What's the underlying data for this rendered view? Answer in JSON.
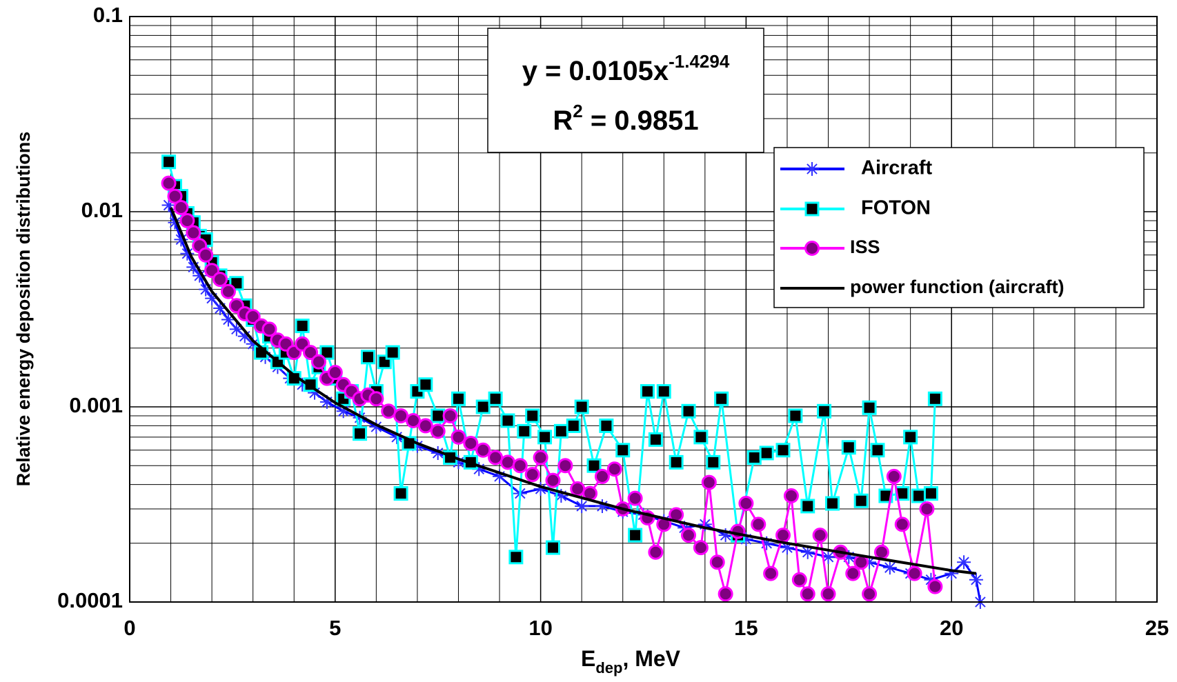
{
  "chart_data": {
    "type": "line",
    "x_label": {
      "main": "E",
      "sub": "dep",
      "rest": ", MeV"
    },
    "y_label": "Relative energy deposition distributions",
    "equation": {
      "lhs": "y = 0.0105x",
      "exponent": "-1.4294",
      "r": "R",
      "r_exp": "2",
      "r_rest": " = 0.9851"
    },
    "xlim": [
      0,
      25
    ],
    "xticks": [
      0,
      5,
      10,
      15,
      20,
      25
    ],
    "ylim": [
      0.0001,
      0.1
    ],
    "yticks": [
      0.0001,
      0.001,
      0.01,
      0.1
    ],
    "y_scale": "log",
    "grid": true,
    "legend_position": "upper right",
    "series": [
      {
        "name": "Aircraft",
        "color": "#0000ff",
        "label_color": "#0000ff",
        "marker": "asterisk",
        "marker_color": "#3030ff",
        "x": [
          0.95,
          1.1,
          1.25,
          1.4,
          1.55,
          1.7,
          1.85,
          2.0,
          2.2,
          2.4,
          2.6,
          2.8,
          3.0,
          3.3,
          3.6,
          3.9,
          4.2,
          4.5,
          4.8,
          5.2,
          5.6,
          6.0,
          6.5,
          7.0,
          7.5,
          8.0,
          8.5,
          9.0,
          9.5,
          10.0,
          10.5,
          11.0,
          11.5,
          12.0,
          12.5,
          13.0,
          13.5,
          14.0,
          14.5,
          15.0,
          15.5,
          16.0,
          16.5,
          17.0,
          17.5,
          18.0,
          18.5,
          19.0,
          19.5,
          20.0,
          20.3,
          20.6,
          20.7
        ],
        "values": [
          0.0108,
          0.0088,
          0.0072,
          0.0061,
          0.0052,
          0.0047,
          0.004,
          0.0036,
          0.0032,
          0.0028,
          0.0025,
          0.0023,
          0.0021,
          0.0018,
          0.0016,
          0.0014,
          0.0013,
          0.00118,
          0.00106,
          0.00095,
          0.00088,
          0.00079,
          0.0007,
          0.00063,
          0.00058,
          0.00052,
          0.00048,
          0.00044,
          0.00036,
          0.00038,
          0.00035,
          0.00031,
          0.00031,
          0.00029,
          0.00028,
          0.00026,
          0.00024,
          0.00025,
          0.00022,
          0.00021,
          0.0002,
          0.00019,
          0.00018,
          0.00017,
          0.00017,
          0.00016,
          0.00015,
          0.00014,
          0.00013,
          0.00014,
          0.00016,
          0.00013,
          0.0001
        ]
      },
      {
        "name": "FOTON",
        "color": "#00ffff",
        "label_color": "#ff0000",
        "marker": "square",
        "marker_color": "#000000",
        "x": [
          0.95,
          1.1,
          1.25,
          1.4,
          1.55,
          1.7,
          1.85,
          2.0,
          2.2,
          2.4,
          2.6,
          2.8,
          3.0,
          3.2,
          3.4,
          3.6,
          3.8,
          4.0,
          4.2,
          4.4,
          4.6,
          4.8,
          5.0,
          5.2,
          5.4,
          5.6,
          5.8,
          6.0,
          6.2,
          6.4,
          6.6,
          6.8,
          7.0,
          7.2,
          7.5,
          7.8,
          8.0,
          8.3,
          8.6,
          8.9,
          9.2,
          9.4,
          9.6,
          9.8,
          10.1,
          10.3,
          10.5,
          10.8,
          11.0,
          11.3,
          11.6,
          12.0,
          12.3,
          12.6,
          12.8,
          13.0,
          13.3,
          13.6,
          13.9,
          14.2,
          14.4,
          14.8,
          15.2,
          15.5,
          15.9,
          16.2,
          16.5,
          16.9,
          17.1,
          17.5,
          17.8,
          18.0,
          18.2,
          18.4,
          18.8,
          19.0,
          19.2,
          19.5,
          19.6
        ],
        "values": [
          0.018,
          0.0135,
          0.012,
          0.0098,
          0.0088,
          0.0075,
          0.0072,
          0.0055,
          0.0047,
          0.0042,
          0.0043,
          0.0033,
          0.0028,
          0.0019,
          0.0023,
          0.0017,
          0.0019,
          0.0014,
          0.0026,
          0.0013,
          0.0016,
          0.0019,
          0.0014,
          0.0011,
          0.0012,
          0.00073,
          0.0018,
          0.0012,
          0.0017,
          0.0019,
          0.00036,
          0.00065,
          0.0012,
          0.0013,
          0.0009,
          0.00055,
          0.0011,
          0.00052,
          0.001,
          0.0011,
          0.00085,
          0.00017,
          0.00075,
          0.0009,
          0.0007,
          0.00019,
          0.00075,
          0.0008,
          0.001,
          0.0005,
          0.0008,
          0.0006,
          0.00022,
          0.0012,
          0.00068,
          0.0012,
          0.00052,
          0.00095,
          0.0007,
          0.00052,
          0.0011,
          0.00022,
          0.00055,
          0.00058,
          0.0006,
          0.0009,
          0.00031,
          0.00095,
          0.00032,
          0.00062,
          0.00033,
          0.00099,
          0.0006,
          0.00035,
          0.00036,
          0.0007,
          0.00035,
          0.00036,
          0.0011
        ]
      },
      {
        "name": "ISS",
        "color": "#ff00ff",
        "label_color": "#000000",
        "marker": "circle",
        "marker_color": "#800080",
        "x": [
          0.95,
          1.1,
          1.25,
          1.4,
          1.55,
          1.7,
          1.85,
          2.0,
          2.2,
          2.4,
          2.6,
          2.8,
          3.0,
          3.2,
          3.4,
          3.6,
          3.8,
          4.0,
          4.2,
          4.4,
          4.6,
          4.8,
          5.0,
          5.2,
          5.4,
          5.6,
          5.8,
          6.0,
          6.3,
          6.6,
          6.9,
          7.2,
          7.5,
          7.8,
          8.0,
          8.3,
          8.6,
          8.9,
          9.2,
          9.5,
          9.8,
          10.0,
          10.3,
          10.6,
          10.9,
          11.2,
          11.5,
          11.8,
          12.0,
          12.3,
          12.6,
          12.8,
          13.0,
          13.3,
          13.6,
          13.9,
          14.1,
          14.3,
          14.5,
          14.8,
          15.0,
          15.3,
          15.6,
          15.9,
          16.1,
          16.3,
          16.5,
          16.8,
          17.0,
          17.3,
          17.6,
          17.8,
          18.0,
          18.3,
          18.6,
          18.8,
          19.1,
          19.4,
          19.6
        ],
        "values": [
          0.014,
          0.012,
          0.0105,
          0.009,
          0.0078,
          0.0067,
          0.006,
          0.005,
          0.0045,
          0.0039,
          0.0033,
          0.003,
          0.0029,
          0.0026,
          0.0025,
          0.0022,
          0.0021,
          0.0019,
          0.0021,
          0.0019,
          0.0017,
          0.0014,
          0.0015,
          0.0013,
          0.0012,
          0.0011,
          0.00115,
          0.0011,
          0.00095,
          0.0009,
          0.00085,
          0.0008,
          0.00075,
          0.0009,
          0.0007,
          0.00065,
          0.0006,
          0.00055,
          0.00052,
          0.0005,
          0.00045,
          0.00055,
          0.00042,
          0.0005,
          0.00038,
          0.00036,
          0.00044,
          0.00048,
          0.0003,
          0.00034,
          0.00027,
          0.00018,
          0.00025,
          0.00028,
          0.00022,
          0.00019,
          0.00041,
          0.00016,
          0.00011,
          0.00023,
          0.00032,
          0.00025,
          0.00014,
          0.00022,
          0.00035,
          0.00013,
          0.00011,
          0.00022,
          0.00011,
          0.00018,
          0.00014,
          0.00016,
          0.00011,
          0.00018,
          0.00044,
          0.00025,
          0.00014,
          0.0003,
          0.00012
        ]
      },
      {
        "name": "power function (aircraft)",
        "color": "#000000",
        "label_color": "#000000",
        "marker": "none",
        "x": [
          1,
          1.5,
          2,
          3,
          4,
          5,
          6,
          7,
          8,
          10,
          12,
          14,
          16,
          18,
          20,
          20.6
        ],
        "values": [
          0.0105,
          0.00588,
          0.0039,
          0.00218,
          0.00145,
          0.00105,
          0.00081,
          0.00065,
          0.00054,
          0.00039,
          0.0003,
          0.00024,
          0.0002,
          0.00017,
          0.000145,
          0.00014
        ]
      }
    ]
  }
}
